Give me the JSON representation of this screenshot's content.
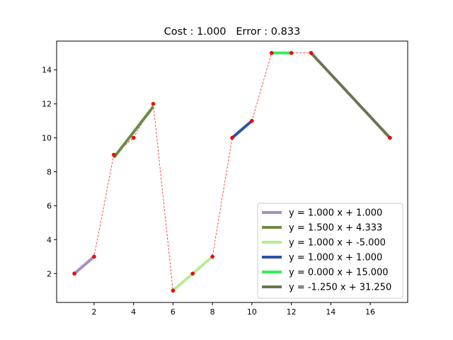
{
  "chart_data": {
    "type": "line",
    "title": "Cost : 1.000   Error : 0.833",
    "xlabel": "",
    "ylabel": "",
    "xlim": [
      0.1,
      17.9
    ],
    "ylim": [
      0.3,
      15.7
    ],
    "x_ticks": [
      2,
      4,
      6,
      8,
      10,
      12,
      14,
      16
    ],
    "y_ticks": [
      2,
      4,
      6,
      8,
      10,
      12,
      14
    ],
    "grid": false,
    "legend_position": "lower-right",
    "points": {
      "x": [
        1,
        2,
        3,
        4,
        5,
        6,
        7,
        8,
        9,
        10,
        11,
        12,
        13,
        17
      ],
      "y": [
        2,
        3,
        9,
        10,
        12,
        1,
        2,
        3,
        10,
        11,
        15,
        15,
        15,
        10
      ],
      "color": "#ff0000",
      "line_style": "dashed"
    },
    "series": [
      {
        "name": "y = 1.000 x + 1.000",
        "color": "#a68bc9",
        "x": [
          1,
          2
        ],
        "y": [
          2,
          3
        ]
      },
      {
        "name": "y = 1.500 x + 4.333",
        "color": "#6b8c46",
        "x": [
          3,
          5
        ],
        "y": [
          8.833,
          11.833
        ]
      },
      {
        "name": "y = 1.000 x + -5.000",
        "color": "#b8eb94",
        "x": [
          6,
          8
        ],
        "y": [
          1,
          3
        ]
      },
      {
        "name": "y = 1.000 x + 1.000",
        "color": "#2f52a3",
        "x": [
          9,
          10
        ],
        "y": [
          10,
          11
        ]
      },
      {
        "name": "y = 0.000 x + 15.000",
        "color": "#38ee5a",
        "x": [
          11,
          12
        ],
        "y": [
          15,
          15
        ]
      },
      {
        "name": "y = -1.250 x + 31.250",
        "color": "#6b7550",
        "x": [
          13,
          17
        ],
        "y": [
          15,
          10
        ]
      }
    ]
  }
}
